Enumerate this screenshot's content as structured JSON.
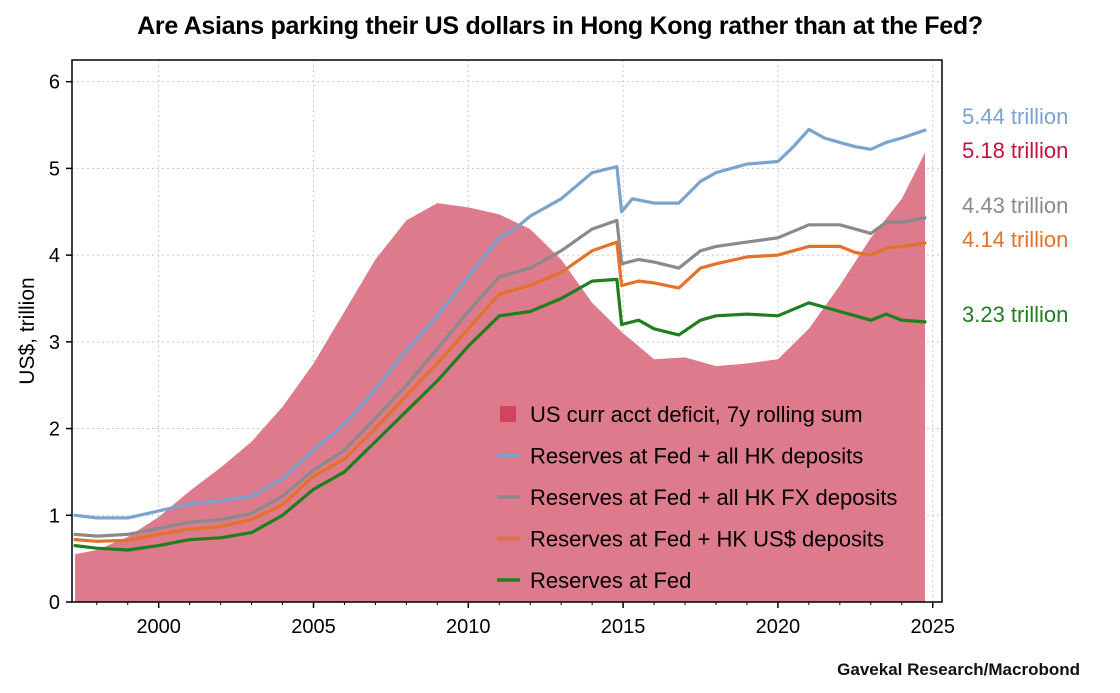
{
  "title": "Are Asians parking their US dollars in Hong Kong rather than at the Fed?",
  "source": "Gavekal Research/Macrobond",
  "chart_data": {
    "type": "line",
    "ylabel": "US$, trillion",
    "xlabel": "",
    "xlim": [
      1997.2,
      2025.3
    ],
    "ylim": [
      0,
      6.25
    ],
    "grid": true,
    "legend_position": "bottom-center",
    "xticks": [
      2000,
      2005,
      2010,
      2015,
      2020,
      2025
    ],
    "yticks": [
      0,
      1,
      2,
      3,
      4,
      5,
      6
    ],
    "series": [
      {
        "name": "US curr acct deficit, 7y rolling sum",
        "kind": "area",
        "color": "#dd7b8c",
        "end_label": "5.18 trillion",
        "label_color": "#c0143c",
        "points": [
          [
            1997.3,
            0.55
          ],
          [
            1998,
            0.6
          ],
          [
            1999,
            0.75
          ],
          [
            2000,
            0.98
          ],
          [
            2001,
            1.28
          ],
          [
            2002,
            1.55
          ],
          [
            2003,
            1.85
          ],
          [
            2004,
            2.25
          ],
          [
            2005,
            2.75
          ],
          [
            2006,
            3.35
          ],
          [
            2007,
            3.95
          ],
          [
            2008,
            4.4
          ],
          [
            2009,
            4.6
          ],
          [
            2010,
            4.55
          ],
          [
            2011,
            4.47
          ],
          [
            2012,
            4.3
          ],
          [
            2013,
            3.95
          ],
          [
            2014,
            3.45
          ],
          [
            2015,
            3.1
          ],
          [
            2016,
            2.8
          ],
          [
            2017,
            2.82
          ],
          [
            2018,
            2.72
          ],
          [
            2019,
            2.75
          ],
          [
            2020,
            2.8
          ],
          [
            2021,
            3.15
          ],
          [
            2022,
            3.65
          ],
          [
            2023,
            4.2
          ],
          [
            2024,
            4.65
          ],
          [
            2024.75,
            5.18
          ]
        ]
      },
      {
        "name": "Reserves at Fed + all HK deposits",
        "kind": "line",
        "color": "#7ba3cf",
        "end_label": "5.44 trillion",
        "label_color": "#7ba3cf",
        "points": [
          [
            1997.3,
            1.0
          ],
          [
            1998,
            0.97
          ],
          [
            1999,
            0.97
          ],
          [
            2000,
            1.05
          ],
          [
            2001,
            1.13
          ],
          [
            2002,
            1.17
          ],
          [
            2003,
            1.22
          ],
          [
            2004,
            1.42
          ],
          [
            2005,
            1.75
          ],
          [
            2006,
            2.05
          ],
          [
            2007,
            2.45
          ],
          [
            2008,
            2.9
          ],
          [
            2009,
            3.3
          ],
          [
            2010,
            3.75
          ],
          [
            2011,
            4.2
          ],
          [
            2011.5,
            4.3
          ],
          [
            2012,
            4.45
          ],
          [
            2013,
            4.65
          ],
          [
            2014,
            4.95
          ],
          [
            2014.8,
            5.02
          ],
          [
            2014.95,
            4.5
          ],
          [
            2015.3,
            4.65
          ],
          [
            2016,
            4.6
          ],
          [
            2016.8,
            4.6
          ],
          [
            2017.5,
            4.85
          ],
          [
            2018,
            4.95
          ],
          [
            2019,
            5.05
          ],
          [
            2020,
            5.08
          ],
          [
            2020.5,
            5.25
          ],
          [
            2021,
            5.45
          ],
          [
            2021.5,
            5.35
          ],
          [
            2022,
            5.3
          ],
          [
            2022.5,
            5.25
          ],
          [
            2023,
            5.22
          ],
          [
            2023.5,
            5.3
          ],
          [
            2024,
            5.35
          ],
          [
            2024.75,
            5.44
          ]
        ]
      },
      {
        "name": "Reserves at Fed + all HK FX deposits",
        "kind": "line",
        "color": "#8a8a8a",
        "end_label": "4.43 trillion",
        "label_color": "#8a8a8a",
        "points": [
          [
            1997.3,
            0.78
          ],
          [
            1998,
            0.76
          ],
          [
            1999,
            0.78
          ],
          [
            2000,
            0.85
          ],
          [
            2001,
            0.92
          ],
          [
            2002,
            0.95
          ],
          [
            2003,
            1.02
          ],
          [
            2004,
            1.22
          ],
          [
            2005,
            1.52
          ],
          [
            2006,
            1.75
          ],
          [
            2007,
            2.12
          ],
          [
            2008,
            2.5
          ],
          [
            2009,
            2.92
          ],
          [
            2010,
            3.35
          ],
          [
            2011,
            3.75
          ],
          [
            2012,
            3.85
          ],
          [
            2013,
            4.05
          ],
          [
            2014,
            4.3
          ],
          [
            2014.8,
            4.4
          ],
          [
            2014.95,
            3.9
          ],
          [
            2015.5,
            3.95
          ],
          [
            2016,
            3.92
          ],
          [
            2016.8,
            3.85
          ],
          [
            2017.5,
            4.05
          ],
          [
            2018,
            4.1
          ],
          [
            2019,
            4.15
          ],
          [
            2020,
            4.2
          ],
          [
            2021,
            4.35
          ],
          [
            2022,
            4.35
          ],
          [
            2022.5,
            4.3
          ],
          [
            2023,
            4.25
          ],
          [
            2023.5,
            4.38
          ],
          [
            2024,
            4.38
          ],
          [
            2024.75,
            4.43
          ]
        ]
      },
      {
        "name": "Reserves at Fed + HK US$ deposits",
        "kind": "line",
        "color": "#e3722a",
        "end_label": "4.14 trillion",
        "label_color": "#e3722a",
        "points": [
          [
            1997.3,
            0.72
          ],
          [
            1998,
            0.7
          ],
          [
            1999,
            0.71
          ],
          [
            2000,
            0.78
          ],
          [
            2001,
            0.84
          ],
          [
            2002,
            0.87
          ],
          [
            2003,
            0.95
          ],
          [
            2004,
            1.12
          ],
          [
            2005,
            1.45
          ],
          [
            2006,
            1.65
          ],
          [
            2007,
            2.0
          ],
          [
            2008,
            2.38
          ],
          [
            2009,
            2.75
          ],
          [
            2010,
            3.15
          ],
          [
            2011,
            3.55
          ],
          [
            2012,
            3.65
          ],
          [
            2013,
            3.8
          ],
          [
            2014,
            4.05
          ],
          [
            2014.8,
            4.15
          ],
          [
            2014.95,
            3.65
          ],
          [
            2015.5,
            3.7
          ],
          [
            2016,
            3.68
          ],
          [
            2016.8,
            3.62
          ],
          [
            2017.5,
            3.85
          ],
          [
            2018,
            3.9
          ],
          [
            2019,
            3.98
          ],
          [
            2020,
            4.0
          ],
          [
            2021,
            4.1
          ],
          [
            2022,
            4.1
          ],
          [
            2022.5,
            4.03
          ],
          [
            2023,
            4.0
          ],
          [
            2023.5,
            4.08
          ],
          [
            2024,
            4.1
          ],
          [
            2024.75,
            4.14
          ]
        ]
      },
      {
        "name": "Reserves at Fed",
        "kind": "line",
        "color": "#1f7f1f",
        "end_label": "3.23 trillion",
        "label_color": "#1f7f1f",
        "points": [
          [
            1997.3,
            0.65
          ],
          [
            1998,
            0.62
          ],
          [
            1999,
            0.6
          ],
          [
            2000,
            0.65
          ],
          [
            2001,
            0.72
          ],
          [
            2002,
            0.74
          ],
          [
            2003,
            0.8
          ],
          [
            2004,
            1.0
          ],
          [
            2005,
            1.3
          ],
          [
            2006,
            1.5
          ],
          [
            2007,
            1.85
          ],
          [
            2008,
            2.2
          ],
          [
            2009,
            2.55
          ],
          [
            2010,
            2.95
          ],
          [
            2011,
            3.3
          ],
          [
            2012,
            3.35
          ],
          [
            2013,
            3.5
          ],
          [
            2014,
            3.7
          ],
          [
            2014.8,
            3.72
          ],
          [
            2014.95,
            3.2
          ],
          [
            2015.5,
            3.25
          ],
          [
            2016,
            3.15
          ],
          [
            2016.8,
            3.08
          ],
          [
            2017.5,
            3.25
          ],
          [
            2018,
            3.3
          ],
          [
            2019,
            3.32
          ],
          [
            2020,
            3.3
          ],
          [
            2021,
            3.45
          ],
          [
            2022,
            3.35
          ],
          [
            2022.5,
            3.3
          ],
          [
            2023,
            3.25
          ],
          [
            2023.5,
            3.32
          ],
          [
            2024,
            3.25
          ],
          [
            2024.75,
            3.23
          ]
        ]
      }
    ]
  }
}
